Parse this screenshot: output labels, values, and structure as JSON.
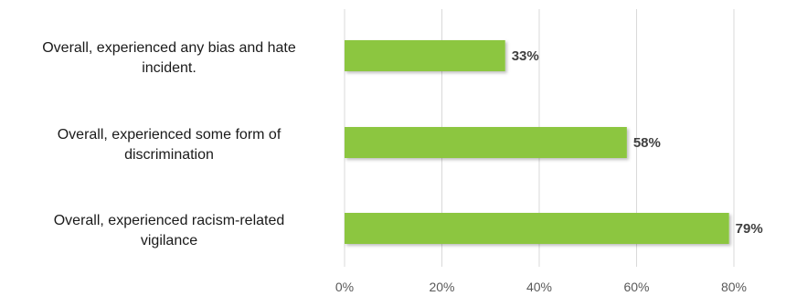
{
  "chart_data": {
    "type": "bar",
    "orientation": "horizontal",
    "categories": [
      [
        "Overall, experienced any bias and hate",
        "incident."
      ],
      [
        "Overall, experienced some form of",
        "discrimination"
      ],
      [
        "Overall, experienced racism-related",
        "vigilance"
      ]
    ],
    "values": [
      33,
      58,
      79
    ],
    "value_labels": [
      "33%",
      "58%",
      "79%"
    ],
    "xlim": [
      0,
      80
    ],
    "xticks": [
      0,
      20,
      40,
      60,
      80
    ],
    "xtick_labels": [
      "0%",
      "20%",
      "40%",
      "60%",
      "80%"
    ],
    "bar_color": "#8cc63f",
    "grid": true,
    "legend": "none"
  }
}
